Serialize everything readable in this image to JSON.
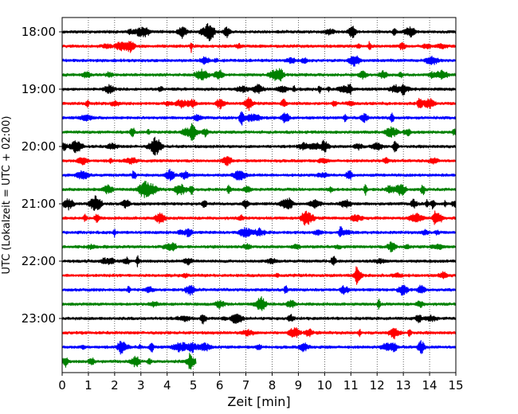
{
  "chart_data": {
    "type": "line",
    "title": "",
    "xlabel": "Zeit  [min]",
    "ylabel": "UTC (Lokalzeit = UTC + 02:00)",
    "xlim": [
      0,
      15
    ],
    "x_ticks": [
      "0",
      "1",
      "2",
      "3",
      "4",
      "5",
      "6",
      "7",
      "8",
      "9",
      "10",
      "11",
      "12",
      "13",
      "14",
      "15"
    ],
    "y_ticks": [
      "18:00",
      "19:00",
      "20:00",
      "21:00",
      "22:00",
      "23:00"
    ],
    "grid": "vertical dotted lines at each minute",
    "trace_colors": [
      "#000000",
      "#ff0000",
      "#0000ff",
      "#008000"
    ],
    "series": [
      {
        "start": "18:00",
        "duration_min": 15,
        "color": "#000000"
      },
      {
        "start": "18:15",
        "duration_min": 15,
        "color": "#ff0000"
      },
      {
        "start": "18:30",
        "duration_min": 15,
        "color": "#0000ff"
      },
      {
        "start": "18:45",
        "duration_min": 15,
        "color": "#008000"
      },
      {
        "start": "19:00",
        "duration_min": 15,
        "color": "#000000"
      },
      {
        "start": "19:15",
        "duration_min": 15,
        "color": "#ff0000"
      },
      {
        "start": "19:30",
        "duration_min": 15,
        "color": "#0000ff"
      },
      {
        "start": "19:45",
        "duration_min": 15,
        "color": "#008000"
      },
      {
        "start": "20:00",
        "duration_min": 15,
        "color": "#000000"
      },
      {
        "start": "20:15",
        "duration_min": 15,
        "color": "#ff0000"
      },
      {
        "start": "20:30",
        "duration_min": 15,
        "color": "#0000ff"
      },
      {
        "start": "20:45",
        "duration_min": 15,
        "color": "#008000"
      },
      {
        "start": "21:00",
        "duration_min": 15,
        "color": "#000000"
      },
      {
        "start": "21:15",
        "duration_min": 15,
        "color": "#ff0000"
      },
      {
        "start": "21:30",
        "duration_min": 15,
        "color": "#0000ff"
      },
      {
        "start": "21:45",
        "duration_min": 15,
        "color": "#008000"
      },
      {
        "start": "22:00",
        "duration_min": 15,
        "color": "#000000"
      },
      {
        "start": "22:15",
        "duration_min": 15,
        "color": "#ff0000"
      },
      {
        "start": "22:30",
        "duration_min": 15,
        "color": "#0000ff"
      },
      {
        "start": "22:45",
        "duration_min": 15,
        "color": "#008000"
      },
      {
        "start": "23:00",
        "duration_min": 15,
        "color": "#000000"
      },
      {
        "start": "23:15",
        "duration_min": 15,
        "color": "#ff0000"
      },
      {
        "start": "23:30",
        "duration_min": 15,
        "color": "#0000ff"
      },
      {
        "start": "23:45",
        "duration_min": 5.1,
        "color": "#008000"
      }
    ]
  }
}
